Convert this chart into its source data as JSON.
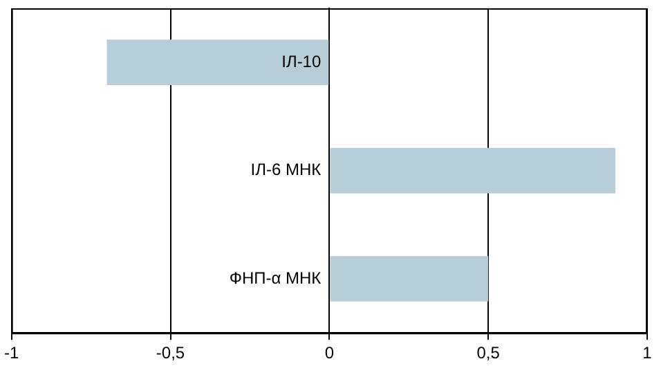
{
  "chart_data": {
    "type": "bar",
    "orientation": "horizontal",
    "categories": [
      "ІЛ-10",
      "ІЛ-6 МНК",
      "ФНП-α МНК"
    ],
    "values": [
      -0.7,
      0.9,
      0.5
    ],
    "color": "#b7cdd8",
    "xlim": [
      -1,
      1
    ],
    "xticks": [
      -1,
      {
        "value": -0.5,
        "label": "-0,5"
      },
      0,
      {
        "value": 0.5,
        "label": "0,5"
      },
      1
    ],
    "grid": "x",
    "legend": false
  }
}
